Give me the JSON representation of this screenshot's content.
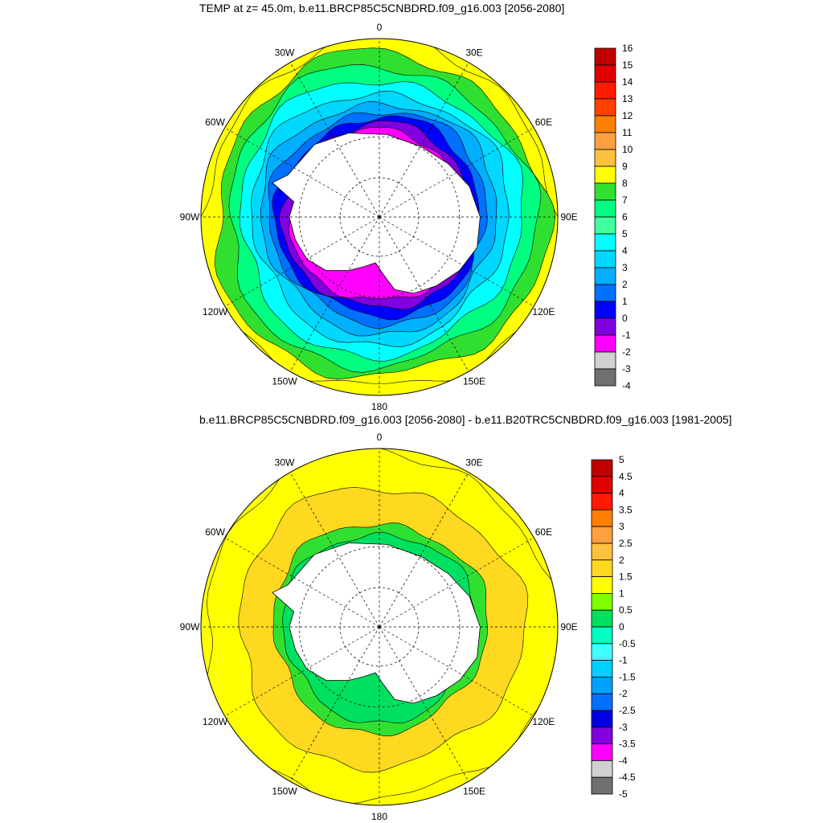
{
  "chart_data": [
    {
      "type": "heatmap",
      "title": "TEMP at z=  45.0m, b.e11.BRCP85C5CNBDRD.f09_g16.003 [2056-2080]",
      "projection": "south polar stereographic",
      "lon_labels": [
        "0",
        "30E",
        "60E",
        "90E",
        "120E",
        "150E",
        "180",
        "150W",
        "120W",
        "90W",
        "60W",
        "30W"
      ],
      "colorbar": {
        "labels": [
          "16",
          "15",
          "14",
          "13",
          "12",
          "11",
          "10",
          "9",
          "8",
          "7",
          "6",
          "5",
          "4",
          "3",
          "2",
          "1",
          "0",
          "-1",
          "-2",
          "-3",
          "-4"
        ],
        "colors": [
          "#c00000",
          "#e00000",
          "#ff1a00",
          "#ff4000",
          "#ff8000",
          "#ffa040",
          "#ffc040",
          "#ffff00",
          "#30e030",
          "#00ff80",
          "#40ffa0",
          "#00ffff",
          "#00d8ff",
          "#00b0ff",
          "#0070ff",
          "#0000ff",
          "#8000e0",
          "#ff00ff",
          "#d0d0d0",
          "#707070"
        ]
      },
      "rings": [
        {
          "r_frac": 1.0,
          "color": "#ffff00"
        },
        {
          "r_frac": 0.93,
          "color": "#30e030"
        },
        {
          "r_frac": 0.86,
          "color": "#00ff80"
        },
        {
          "r_frac": 0.79,
          "color": "#00ffff"
        },
        {
          "r_frac": 0.72,
          "color": "#00d8ff"
        },
        {
          "r_frac": 0.66,
          "color": "#00b0ff"
        },
        {
          "r_frac": 0.61,
          "color": "#0070ff"
        },
        {
          "r_frac": 0.57,
          "color": "#0000ff"
        },
        {
          "r_frac": 0.53,
          "color": "#8000e0"
        },
        {
          "r_frac": 0.49,
          "color": "#ff00ff"
        }
      ]
    },
    {
      "type": "heatmap",
      "title": "b.e11.BRCP85C5CNBDRD.f09_g16.003 [2056-2080] - b.e11.B20TRC5CNBDRD.f09_g16.003 [1981-2005]",
      "projection": "south polar stereographic",
      "lon_labels": [
        "0",
        "30E",
        "60E",
        "90E",
        "120E",
        "150E",
        "180",
        "150W",
        "120W",
        "90W",
        "60W",
        "30W"
      ],
      "colorbar": {
        "labels": [
          "5",
          "4.5",
          "4",
          "3.5",
          "3",
          "2.5",
          "2",
          "1.5",
          "1",
          "0.5",
          "0",
          "-0.5",
          "-1",
          "-1.5",
          "-2",
          "-2.5",
          "-3",
          "-3.5",
          "-4",
          "-4.5",
          "-5"
        ],
        "colors": [
          "#c00000",
          "#e00000",
          "#ff1a00",
          "#ff8000",
          "#ffa040",
          "#ffc040",
          "#ffd820",
          "#ffff00",
          "#80ff00",
          "#00e060",
          "#00ffc0",
          "#40ffff",
          "#00d0ff",
          "#00a0ff",
          "#0070ff",
          "#0000e0",
          "#8000e0",
          "#ff00ff",
          "#d0d0d0",
          "#707070"
        ]
      },
      "rings": [
        {
          "r_frac": 1.0,
          "color": "#ffff00"
        },
        {
          "r_frac": 0.8,
          "color": "#ffd820"
        },
        {
          "r_frac": 0.6,
          "color": "#30e030"
        },
        {
          "r_frac": 0.54,
          "color": "#00e060"
        }
      ]
    }
  ]
}
